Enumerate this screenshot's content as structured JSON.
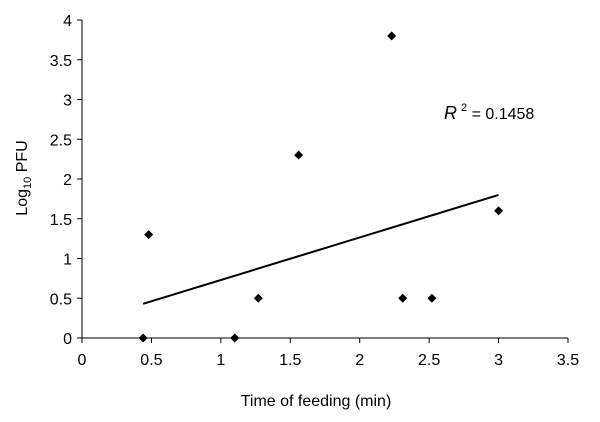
{
  "chart_data": {
    "type": "scatter",
    "title": "",
    "xlabel": "Time of feeding (min)",
    "ylabel": {
      "prefix": "Log",
      "subscript": "10",
      "suffix": " PFU"
    },
    "xlim": [
      0,
      3.5
    ],
    "ylim": [
      0,
      4
    ],
    "x_ticks": [
      "0",
      "0.5",
      "1",
      "1.5",
      "2",
      "2.5",
      "3",
      "3.5"
    ],
    "y_ticks": [
      "0",
      "0.5",
      "1",
      "1.5",
      "2",
      "2.5",
      "3",
      "3.5",
      "4"
    ],
    "grid": false,
    "legend": false,
    "marker": "diamond",
    "color": "#000000",
    "points": [
      {
        "x": 0.44,
        "y": 0
      },
      {
        "x": 0.48,
        "y": 1.3
      },
      {
        "x": 1.1,
        "y": 0
      },
      {
        "x": 1.27,
        "y": 0.5
      },
      {
        "x": 1.56,
        "y": 2.3
      },
      {
        "x": 2.23,
        "y": 3.8
      },
      {
        "x": 2.31,
        "y": 0.5
      },
      {
        "x": 2.52,
        "y": 0.5
      },
      {
        "x": 3.0,
        "y": 1.6
      }
    ],
    "trendline": {
      "type": "linear",
      "x": [
        0.44,
        3.0
      ],
      "y": [
        0.43,
        1.8
      ]
    },
    "annotation": {
      "r_symbol": "R",
      "r_exponent": "2",
      "r_value": " = 0.1458"
    }
  }
}
